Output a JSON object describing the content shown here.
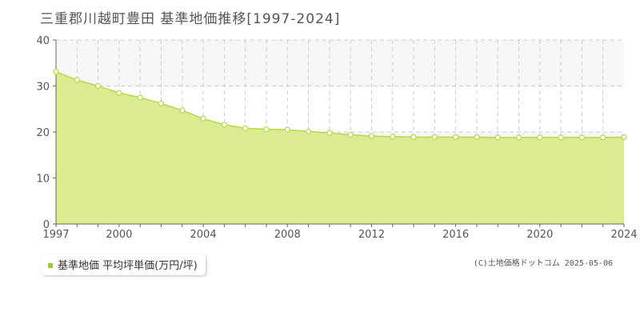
{
  "title": "三重郡川越町豊田 基準地価推移[1997-2024]",
  "legend_label": "基準地価 平均坪単価(万円/坪)",
  "copyright": "(C)土地価格ドットコム 2025-05-06",
  "colors": {
    "area_fill": "#dbeb8f",
    "line": "#b5d94a",
    "marker_fill": "#ffffff",
    "band": "#f7f6f7",
    "grid": "#cccccc",
    "legend_marker": "#9ccc2c"
  },
  "chart_data": {
    "type": "area",
    "title": "三重郡川越町豊田 基準地価推移[1997-2024]",
    "xlabel": "",
    "ylabel": "",
    "xlim": [
      1997,
      2024
    ],
    "ylim": [
      0,
      40
    ],
    "y_ticks": [
      0,
      10,
      20,
      30,
      40
    ],
    "x_ticks": [
      1997,
      2000,
      2004,
      2008,
      2012,
      2016,
      2020,
      2024
    ],
    "grid": true,
    "legend_position": "bottom-left",
    "series": [
      {
        "name": "基準地価 平均坪単価(万円/坪)",
        "x": [
          1997,
          1998,
          1999,
          2000,
          2001,
          2002,
          2003,
          2004,
          2005,
          2006,
          2007,
          2008,
          2009,
          2010,
          2011,
          2012,
          2013,
          2014,
          2015,
          2016,
          2017,
          2018,
          2019,
          2020,
          2021,
          2022,
          2023,
          2024
        ],
        "values": [
          33.1,
          31.3,
          30.0,
          28.5,
          27.5,
          26.2,
          24.7,
          22.9,
          21.6,
          20.8,
          20.6,
          20.5,
          20.1,
          19.8,
          19.4,
          19.1,
          19.0,
          18.9,
          18.9,
          18.9,
          18.9,
          18.8,
          18.8,
          18.8,
          18.8,
          18.8,
          18.8,
          18.9
        ]
      }
    ]
  }
}
